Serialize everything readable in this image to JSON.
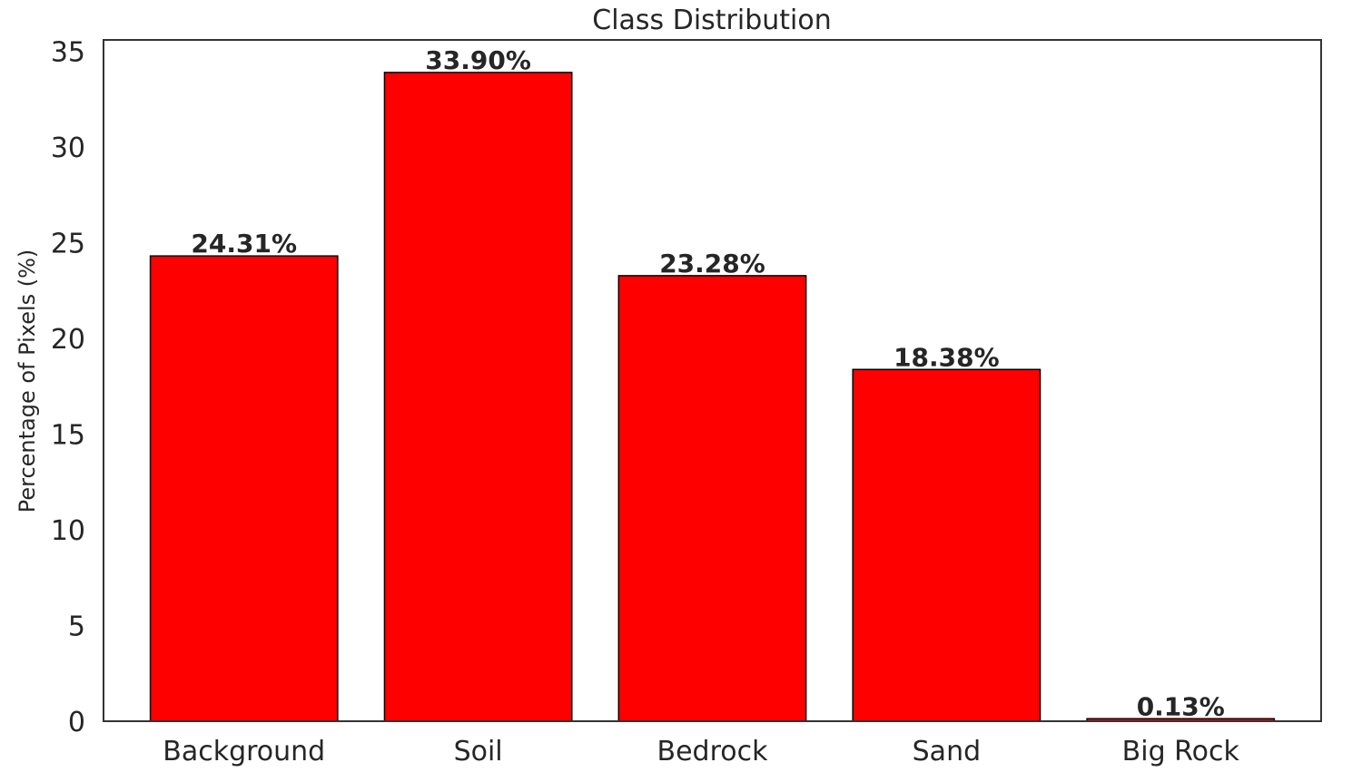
{
  "chart_data": {
    "type": "bar",
    "title": "Class Distribution",
    "xlabel": "",
    "ylabel": "Percentage of Pixels (%)",
    "categories": [
      "Background",
      "Soil",
      "Bedrock",
      "Sand",
      "Big Rock"
    ],
    "values": [
      24.31,
      33.9,
      23.28,
      18.38,
      0.13
    ],
    "value_labels": [
      "24.31%",
      "33.90%",
      "23.28%",
      "18.38%",
      "0.13%"
    ],
    "yticks": [
      0,
      5,
      10,
      15,
      20,
      25,
      30,
      35
    ],
    "ylim": [
      0,
      35.6
    ],
    "grid": false,
    "legend": "none",
    "bar_color": "#ff0000",
    "bar_edge_color": "#000000"
  }
}
